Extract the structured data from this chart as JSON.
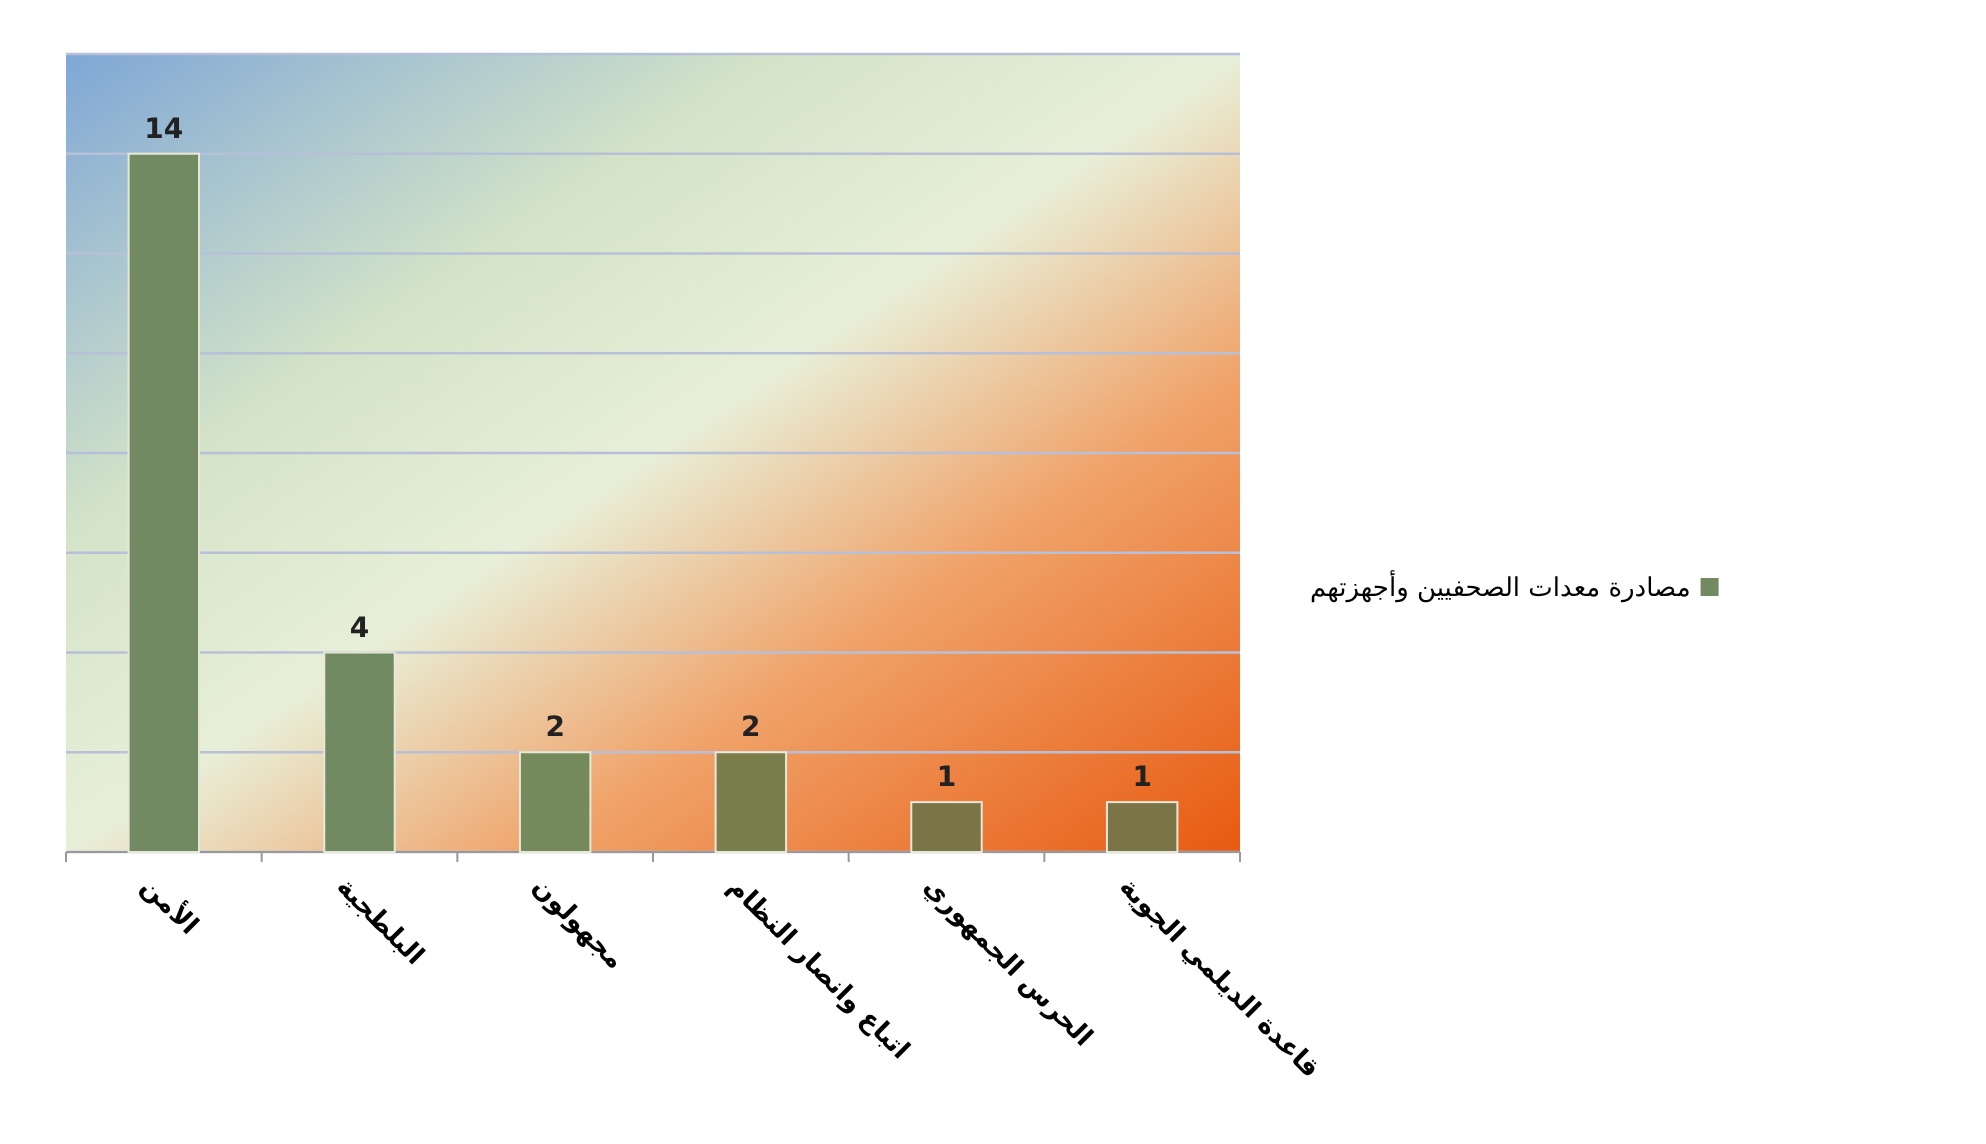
{
  "chart_data": {
    "type": "bar",
    "categories": [
      "الأمن",
      "البلطجية",
      "مجهولون",
      "اتباع وانصار النظام",
      "الحرس الجمهوري",
      "قاعدة الديلمي الجوية"
    ],
    "series": [
      {
        "name": "مصادرة معدات الصحفيين وأجهزتهم",
        "color": "#728a62",
        "colors": [
          "#728a62",
          "#728a62",
          "#748a5c",
          "#7a7e4c",
          "#7a7447",
          "#7a7447"
        ],
        "values": [
          14,
          4,
          2,
          2,
          1,
          1
        ]
      }
    ],
    "ylim": [
      0,
      16
    ],
    "yticks": [
      {
        "value": 0,
        "label": null
      },
      {
        "value": 2,
        "label": null
      },
      {
        "value": 4,
        "label": null
      },
      {
        "value": 6,
        "label": null
      },
      {
        "value": 8,
        "label": null
      },
      {
        "value": 10,
        "label": null
      },
      {
        "value": 12,
        "label": null
      },
      {
        "value": 14,
        "label": null
      },
      {
        "value": 16,
        "label": null
      }
    ],
    "grid": "y",
    "legend": "right",
    "data_labels": true
  }
}
